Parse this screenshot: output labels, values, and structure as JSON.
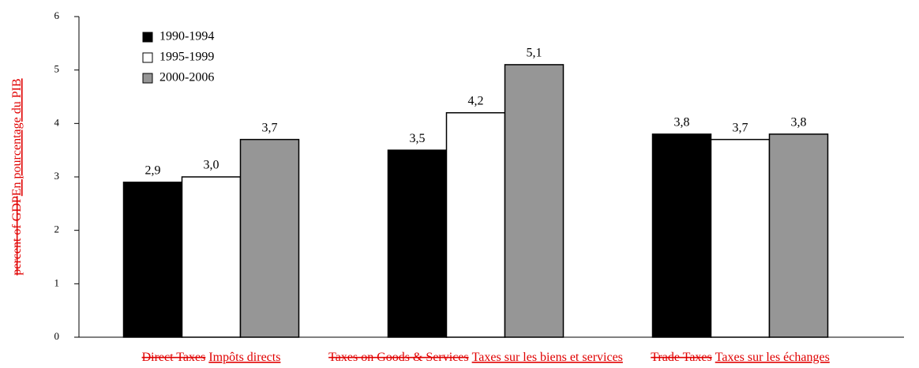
{
  "chart_data": {
    "type": "bar",
    "categories": [
      "Impôts directs",
      "Taxes sur les biens et services",
      "Taxes sur les échanges"
    ],
    "deleted_category_labels": [
      "Direct Taxes",
      "Taxes on Goods & Services",
      "Trade Taxes"
    ],
    "ylabel": "En pourcentage du PIB",
    "deleted_ylabel": "percent of GDP",
    "series": [
      {
        "name": "1990-1994",
        "color": "#000000",
        "values": [
          2.9,
          3.5,
          3.8
        ],
        "value_labels": [
          "2,9",
          "3,5",
          "3,8"
        ]
      },
      {
        "name": "1995-1999",
        "color": "#ffffff",
        "values": [
          3.0,
          4.2,
          3.7
        ],
        "value_labels": [
          "3,0",
          "4,2",
          "3,7"
        ]
      },
      {
        "name": "2000-2006",
        "color": "#969696",
        "values": [
          3.7,
          5.1,
          3.8
        ],
        "value_labels": [
          "3,7",
          "5,1",
          "3,8"
        ]
      }
    ],
    "ylim": [
      0,
      6
    ],
    "yticks": [
      0,
      1,
      2,
      3,
      4,
      5,
      6
    ],
    "grid": false,
    "legend": "upper left"
  }
}
